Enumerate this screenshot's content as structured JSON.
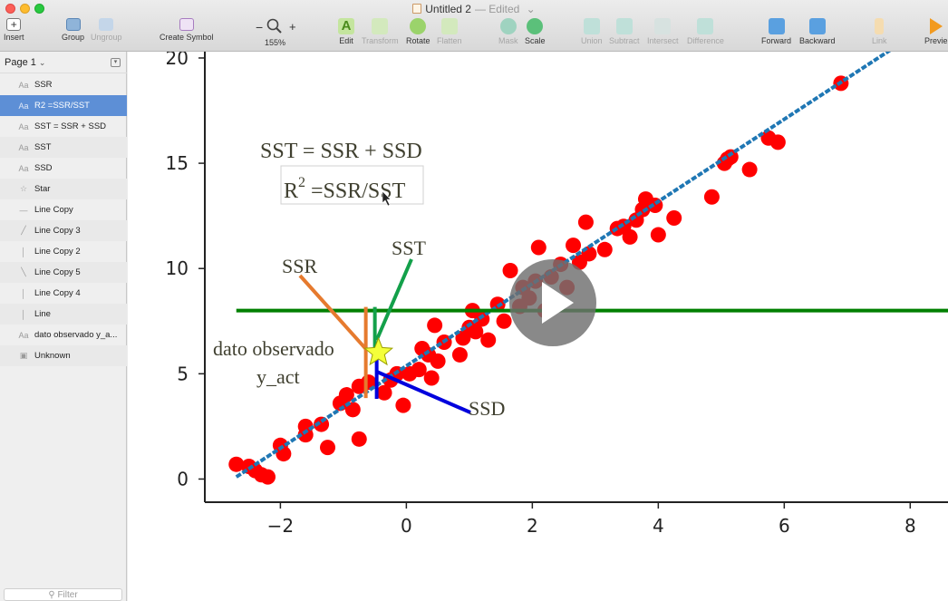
{
  "window": {
    "title": "Untitled 2",
    "status": "— Edited",
    "status_chevron": "⌄"
  },
  "toolbar": {
    "insert": "Insert",
    "group": "Group",
    "ungroup": "Ungroup",
    "create_symbol": "Create Symbol",
    "zoom_minus": "−",
    "zoom_plus": "+",
    "zoom_value": "155%",
    "edit": "Edit",
    "transform": "Transform",
    "rotate": "Rotate",
    "flatten": "Flatten",
    "mask": "Mask",
    "scale": "Scale",
    "union": "Union",
    "subtract": "Subtract",
    "intersect": "Intersect",
    "difference": "Difference",
    "forward": "Forward",
    "backward": "Backward",
    "link": "Link",
    "preview": "Previe"
  },
  "sidebar": {
    "page": "Page 1",
    "filter_placeholder": "Filter",
    "layers": [
      {
        "icon": "Aa",
        "label": "SSR",
        "selected": false
      },
      {
        "icon": "Aa",
        "label": "R2 =SSR/SST",
        "selected": true
      },
      {
        "icon": "Aa",
        "label": "SST = SSR + SSD",
        "selected": false
      },
      {
        "icon": "Aa",
        "label": "SST",
        "selected": false
      },
      {
        "icon": "Aa",
        "label": "SSD",
        "selected": false
      },
      {
        "icon": "☆",
        "label": "Star",
        "selected": false
      },
      {
        "icon": "—",
        "label": "Line Copy",
        "selected": false
      },
      {
        "icon": "╱",
        "label": "Line Copy 3",
        "selected": false
      },
      {
        "icon": "│",
        "label": "Line Copy 2",
        "selected": false
      },
      {
        "icon": "╲",
        "label": "Line Copy 5",
        "selected": false
      },
      {
        "icon": "│",
        "label": "Line Copy 4",
        "selected": false
      },
      {
        "icon": "│",
        "label": "Line",
        "selected": false
      },
      {
        "icon": "Aa",
        "label": "dato observado y_a...",
        "selected": false
      },
      {
        "icon": "▣",
        "label": "Unknown",
        "selected": false
      }
    ]
  },
  "canvas": {
    "formula_sst": "SST = SSR + SSD",
    "formula_r2_base": "R",
    "formula_r2_exp": "2",
    "formula_r2_rest": " =SSR/SST",
    "label_ssr": "SSR",
    "label_sst": "SST",
    "label_ssd": "SSD",
    "label_dato_1": "dato observado",
    "label_dato_2": "y_act",
    "colors": {
      "points": "#ff0000",
      "regression": "#1f77b4",
      "mean_line": "#008000",
      "ssr_line": "#e67a2e",
      "sst_line": "#13a04a",
      "ssd_line": "#0000dd",
      "star": "#f4ff3a"
    }
  },
  "chart_data": {
    "type": "scatter",
    "xlim": [
      -3.2,
      8.6
    ],
    "ylim": [
      -1.1,
      20.3
    ],
    "xticks": [
      -2,
      0,
      2,
      4,
      6,
      8
    ],
    "xtick_labels": [
      "−2",
      "0",
      "2",
      "4",
      "6",
      "8"
    ],
    "yticks": [
      0,
      5,
      10,
      15,
      20
    ],
    "ytick_labels": [
      "0",
      "5",
      "10",
      "15",
      "20"
    ],
    "regression": {
      "x": [
        -2.7,
        7.9
      ],
      "y": [
        0.1,
        20.8
      ]
    },
    "mean_y": 8.0,
    "mean_x_range": [
      -2.7,
      8.6
    ],
    "observed_point": {
      "x": -0.5,
      "y": 6.0
    },
    "fitted_at_observed": {
      "x": -0.5,
      "y": 5.1
    },
    "points": [
      [
        -2.7,
        0.7
      ],
      [
        -2.5,
        0.6
      ],
      [
        -2.4,
        0.4
      ],
      [
        -2.3,
        0.2
      ],
      [
        -2.2,
        0.1
      ],
      [
        -2.0,
        1.6
      ],
      [
        -1.95,
        1.2
      ],
      [
        -1.6,
        2.5
      ],
      [
        -1.6,
        2.1
      ],
      [
        -1.35,
        2.6
      ],
      [
        -1.25,
        1.5
      ],
      [
        -1.05,
        3.6
      ],
      [
        -0.95,
        4.0
      ],
      [
        -0.85,
        3.3
      ],
      [
        -0.75,
        1.9
      ],
      [
        -0.75,
        4.4
      ],
      [
        -0.6,
        4.6
      ],
      [
        -0.35,
        4.1
      ],
      [
        -0.25,
        4.7
      ],
      [
        -0.15,
        5.0
      ],
      [
        -0.05,
        3.5
      ],
      [
        0.05,
        5.0
      ],
      [
        0.2,
        5.2
      ],
      [
        0.25,
        6.2
      ],
      [
        0.35,
        5.9
      ],
      [
        0.4,
        4.8
      ],
      [
        0.5,
        5.6
      ],
      [
        0.6,
        6.5
      ],
      [
        0.45,
        7.3
      ],
      [
        0.85,
        5.9
      ],
      [
        0.9,
        6.7
      ],
      [
        1.0,
        7.2
      ],
      [
        1.05,
        8.0
      ],
      [
        1.1,
        7.0
      ],
      [
        1.2,
        7.6
      ],
      [
        1.3,
        6.6
      ],
      [
        1.45,
        8.3
      ],
      [
        1.55,
        7.5
      ],
      [
        1.65,
        9.9
      ],
      [
        1.8,
        8.2
      ],
      [
        1.85,
        9.1
      ],
      [
        1.95,
        8.6
      ],
      [
        2.05,
        9.4
      ],
      [
        2.1,
        11.0
      ],
      [
        2.2,
        8.0
      ],
      [
        2.3,
        9.6
      ],
      [
        2.45,
        10.2
      ],
      [
        2.55,
        9.1
      ],
      [
        2.65,
        11.1
      ],
      [
        2.75,
        10.3
      ],
      [
        2.9,
        10.7
      ],
      [
        2.85,
        12.2
      ],
      [
        3.15,
        10.9
      ],
      [
        3.35,
        11.9
      ],
      [
        3.45,
        12.0
      ],
      [
        3.55,
        11.5
      ],
      [
        3.65,
        12.3
      ],
      [
        3.75,
        12.8
      ],
      [
        3.8,
        13.3
      ],
      [
        3.95,
        13.0
      ],
      [
        4.0,
        11.6
      ],
      [
        4.25,
        12.4
      ],
      [
        4.85,
        13.4
      ],
      [
        5.05,
        15.0
      ],
      [
        5.15,
        15.3
      ],
      [
        5.1,
        15.2
      ],
      [
        5.45,
        14.7
      ],
      [
        5.75,
        16.2
      ],
      [
        5.9,
        16.0
      ],
      [
        6.9,
        18.8
      ]
    ]
  }
}
